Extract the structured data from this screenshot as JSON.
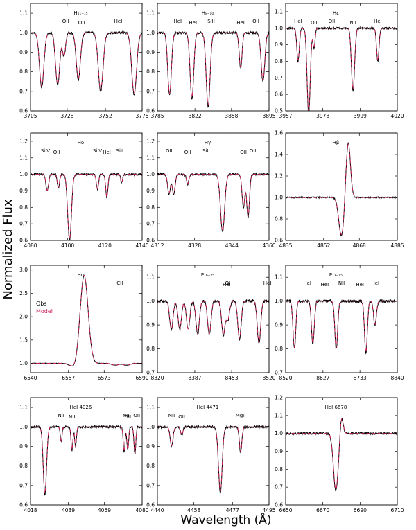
{
  "chart_data": {
    "type": "line",
    "ylabel": "Normalized Flux",
    "xlabel": "Wavelength (Å)",
    "legend": {
      "placement": "top-left of Hα panel",
      "entries": [
        {
          "name": "Obs",
          "color": "#000000"
        },
        {
          "name": "Model",
          "color": "#cc2255"
        }
      ]
    },
    "panels": [
      {
        "id": "h11-15",
        "title": "H₁₁₋₁₅",
        "xlim": [
          3705,
          3775
        ],
        "ylim": [
          0.6,
          1.15
        ],
        "xticks": [
          3705,
          3728,
          3752,
          3775
        ],
        "yticks": [
          0.6,
          0.7,
          0.8,
          0.9,
          1.0,
          1.1
        ],
        "lines": [
          {
            "label": "OII",
            "x": 3727
          },
          {
            "label": "OII",
            "x": 3737
          },
          {
            "label": "HeI",
            "x": 3760
          }
        ],
        "features": [
          [
            3712,
            0.28,
            1.4
          ],
          [
            3722,
            0.27,
            1.3
          ],
          [
            3726,
            0.12,
            1.0
          ],
          [
            3735,
            0.24,
            1.3
          ],
          [
            3749,
            0.3,
            1.5
          ],
          [
            3770,
            0.32,
            1.5
          ]
        ]
      },
      {
        "id": "h8-10",
        "title": "H₈₋₁₀",
        "xlim": [
          3785,
          3895
        ],
        "ylim": [
          0.6,
          1.15
        ],
        "xticks": [
          3785,
          3822,
          3858,
          3895
        ],
        "yticks": [
          0.6,
          0.7,
          0.8,
          0.9,
          1.0,
          1.1
        ],
        "lines": [
          {
            "label": "HeI",
            "x": 3805
          },
          {
            "label": "HeI",
            "x": 3820
          },
          {
            "label": "SiII",
            "x": 3838
          },
          {
            "label": "HeI",
            "x": 3867
          },
          {
            "label": "OII",
            "x": 3882
          }
        ],
        "features": [
          [
            3797,
            0.32,
            1.8
          ],
          [
            3819,
            0.34,
            1.8
          ],
          [
            3835,
            0.38,
            1.9
          ],
          [
            3867,
            0.18,
            1.4
          ],
          [
            3889,
            0.25,
            1.8
          ]
        ]
      },
      {
        "id": "h-eps",
        "title": "Hε",
        "xlim": [
          3957,
          4020
        ],
        "ylim": [
          0.5,
          1.15
        ],
        "xticks": [
          3957,
          3978,
          3999,
          4020
        ],
        "yticks": [
          0.5,
          0.6,
          0.7,
          0.8,
          0.9,
          1.0,
          1.1
        ],
        "lines": [
          {
            "label": "HeI",
            "x": 3964
          },
          {
            "label": "OII",
            "x": 3973
          },
          {
            "label": "OII",
            "x": 3983
          },
          {
            "label": "NII",
            "x": 3995
          },
          {
            "label": "HeI",
            "x": 4009
          }
        ],
        "features": [
          [
            3964,
            0.2,
            0.7
          ],
          [
            3970,
            0.52,
            0.9
          ],
          [
            3973,
            0.12,
            0.6
          ],
          [
            3995,
            0.38,
            0.9
          ],
          [
            4009,
            0.2,
            0.7
          ]
        ]
      },
      {
        "id": "h-delta",
        "title": "Hδ",
        "xlim": [
          4080,
          4140
        ],
        "ylim": [
          0.6,
          1.25
        ],
        "xticks": [
          4080,
          4100,
          4120,
          4140
        ],
        "yticks": [
          0.6,
          0.7,
          0.8,
          0.9,
          1.0,
          1.1,
          1.2
        ],
        "lines": [
          {
            "label": "SiIV",
            "x": 4088
          },
          {
            "label": "OII",
            "x": 4094
          },
          {
            "label": "SiIV",
            "x": 4116
          },
          {
            "label": "HeI",
            "x": 4121
          },
          {
            "label": "SiII",
            "x": 4128
          }
        ],
        "features": [
          [
            4089,
            0.1,
            0.7
          ],
          [
            4095,
            0.08,
            0.6
          ],
          [
            4101,
            0.4,
            1.0
          ],
          [
            4116,
            0.09,
            0.6
          ],
          [
            4121,
            0.14,
            0.6
          ],
          [
            4129,
            0.05,
            0.5
          ]
        ]
      },
      {
        "id": "h-gamma",
        "title": "Hγ",
        "xlim": [
          4312,
          4360
        ],
        "ylim": [
          0.6,
          1.25
        ],
        "xticks": [
          4312,
          4328,
          4344,
          4360
        ],
        "yticks": [
          0.6,
          0.7,
          0.8,
          0.9,
          1.0,
          1.1,
          1.2
        ],
        "lines": [
          {
            "label": "OII",
            "x": 4317
          },
          {
            "label": "OII",
            "x": 4325
          },
          {
            "label": "SiII",
            "x": 4333
          },
          {
            "label": "OII",
            "x": 4349
          },
          {
            "label": "OII",
            "x": 4353
          }
        ],
        "features": [
          [
            4317,
            0.12,
            0.6
          ],
          [
            4319,
            0.12,
            0.6
          ],
          [
            4325,
            0.06,
            0.5
          ],
          [
            4340,
            0.35,
            0.9
          ],
          [
            4349,
            0.2,
            0.6
          ],
          [
            4351,
            0.26,
            0.6
          ]
        ]
      },
      {
        "id": "h-beta",
        "title": "Hβ",
        "xlim": [
          4835,
          4885
        ],
        "ylim": [
          0.6,
          1.6
        ],
        "xticks": [
          4835,
          4852,
          4868,
          4885
        ],
        "yticks": [
          0.6,
          0.8,
          1.0,
          1.2,
          1.4,
          1.6
        ],
        "lines": [],
        "features": [
          [
            4860,
            0.36,
            1.2
          ]
        ],
        "emission": [
          4863,
          0.52,
          1.0
        ]
      },
      {
        "id": "h-alpha",
        "title": "Hα",
        "xlim": [
          6540,
          6590
        ],
        "ylim": [
          0.8,
          3.1
        ],
        "xticks": [
          6540,
          6557,
          6573,
          6590
        ],
        "yticks": [
          1.0,
          1.5,
          2.0,
          2.5,
          3.0
        ],
        "lines": [
          {
            "label": "CII",
            "x": 6580
          }
        ],
        "features": [
          [
            6560,
            0.1,
            2.0
          ],
          [
            6578,
            0.04,
            1.5
          ],
          [
            6583,
            0.04,
            1.5
          ]
        ],
        "emission": [
          6564,
          1.9,
          1.8
        ]
      },
      {
        "id": "p16-25",
        "title": "P₁₆₋₂₅",
        "xlim": [
          8320,
          8520
        ],
        "ylim": [
          0.7,
          1.15
        ],
        "xticks": [
          8320,
          8387,
          8453,
          8520
        ],
        "yticks": [
          0.7,
          0.8,
          0.9,
          1.0,
          1.1
        ],
        "lines": [
          {
            "label": "OI",
            "x": 8446
          },
          {
            "label": "HeI",
            "x": 8444
          },
          {
            "label": "HeI",
            "x": 8517
          }
        ],
        "features": [
          [
            8345,
            0.12,
            3
          ],
          [
            8360,
            0.12,
            3
          ],
          [
            8375,
            0.12,
            3
          ],
          [
            8392,
            0.14,
            3
          ],
          [
            8413,
            0.14,
            3
          ],
          [
            8438,
            0.14,
            3
          ],
          [
            8446,
            0.08,
            3
          ],
          [
            8467,
            0.16,
            3
          ],
          [
            8502,
            0.18,
            3
          ]
        ]
      },
      {
        "id": "p12-15",
        "title": "P₁₂₋₁₅",
        "xlim": [
          8520,
          8840
        ],
        "ylim": [
          0.7,
          1.15
        ],
        "xticks": [
          8520,
          8627,
          8733,
          8840
        ],
        "yticks": [
          0.7,
          0.8,
          0.9,
          1.0,
          1.1
        ],
        "lines": [
          {
            "label": "HeI",
            "x": 8582
          },
          {
            "label": "HeI",
            "x": 8632
          },
          {
            "label": "NII",
            "x": 8680
          },
          {
            "label": "HeI",
            "x": 8733
          },
          {
            "label": "HeI",
            "x": 8777
          }
        ],
        "features": [
          [
            8545,
            0.2,
            4
          ],
          [
            8598,
            0.18,
            4
          ],
          [
            8665,
            0.2,
            4
          ],
          [
            8750,
            0.22,
            4
          ],
          [
            8776,
            0.1,
            4
          ]
        ]
      },
      {
        "id": "hei-4026",
        "title": "HeI 4026",
        "xlim": [
          4018,
          4080
        ],
        "ylim": [
          0.6,
          1.15
        ],
        "xticks": [
          4018,
          4039,
          4059,
          4080
        ],
        "yticks": [
          0.6,
          0.7,
          0.8,
          0.9,
          1.0,
          1.1
        ],
        "lines": [
          {
            "label": "NII",
            "x": 4035
          },
          {
            "label": "NII",
            "x": 4041
          },
          {
            "label": "NII",
            "x": 4071
          },
          {
            "label": "OII",
            "x": 4072
          },
          {
            "label": "OII",
            "x": 4077
          }
        ],
        "features": [
          [
            4026,
            0.35,
            0.9
          ],
          [
            4035,
            0.08,
            0.5
          ],
          [
            4041,
            0.12,
            0.5
          ],
          [
            4043,
            0.1,
            0.5
          ],
          [
            4070,
            0.13,
            0.5
          ],
          [
            4072,
            0.12,
            0.5
          ],
          [
            4076,
            0.14,
            0.5
          ]
        ]
      },
      {
        "id": "hei-4471",
        "title": "HeI 4471",
        "xlim": [
          4440,
          4495
        ],
        "ylim": [
          0.6,
          1.15
        ],
        "xticks": [
          4440,
          4458,
          4477,
          4495
        ],
        "yticks": [
          0.6,
          0.7,
          0.8,
          0.9,
          1.0,
          1.1
        ],
        "lines": [
          {
            "label": "NII",
            "x": 4447
          },
          {
            "label": "OII",
            "x": 4452
          },
          {
            "label": "MgII",
            "x": 4481
          }
        ],
        "features": [
          [
            4447,
            0.1,
            0.7
          ],
          [
            4452,
            0.04,
            0.6
          ],
          [
            4471,
            0.34,
            0.9
          ],
          [
            4481,
            0.13,
            0.6
          ]
        ]
      },
      {
        "id": "hei-6678",
        "title": "HeI 6678",
        "xlim": [
          6650,
          6710
        ],
        "ylim": [
          0.6,
          1.2
        ],
        "xticks": [
          6650,
          6670,
          6690,
          6710
        ],
        "yticks": [
          0.6,
          0.7,
          0.8,
          0.9,
          1.0,
          1.1,
          1.2
        ],
        "lines": [],
        "features": [
          [
            6677,
            0.32,
            1.3
          ]
        ],
        "emission": [
          6680,
          0.1,
          0.9
        ]
      }
    ]
  }
}
